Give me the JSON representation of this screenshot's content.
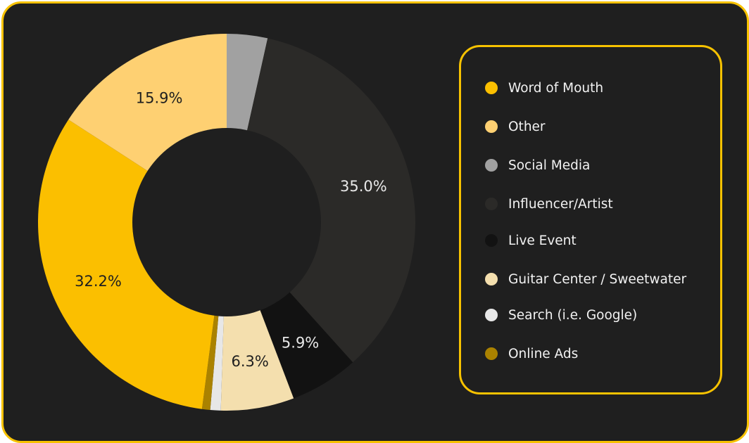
{
  "chart_data": {
    "type": "pie",
    "variant": "donut",
    "title": "",
    "legend_position": "right",
    "series": [
      {
        "name": "Word of Mouth",
        "value": 32.2,
        "label": "32.2%",
        "color": "#fbbf00"
      },
      {
        "name": "Other",
        "value": 15.9,
        "label": "15.9%",
        "color": "#fed072"
      },
      {
        "name": "Social Media",
        "value": 3.5,
        "label": "",
        "color": "#a1a1a1"
      },
      {
        "name": "Influencer/Artist",
        "value": 35.0,
        "label": "35.0%",
        "color": "#2b2a28"
      },
      {
        "name": "Live Event",
        "value": 5.9,
        "label": "5.9%",
        "color": "#121212"
      },
      {
        "name": "Guitar Center / Sweetwater",
        "value": 6.3,
        "label": "6.3%",
        "color": "#f4dfae"
      },
      {
        "name": "Search (i.e. Google)",
        "value": 0.9,
        "label": "",
        "color": "#e7e7e7"
      },
      {
        "name": "Online Ads",
        "value": 0.7,
        "label": "",
        "color": "#aa8200"
      }
    ],
    "slice_order_clockwise_from_top": [
      "Social Media",
      "Influencer/Artist",
      "Live Event",
      "Guitar Center / Sweetwater",
      "Search (i.e. Google)",
      "Online Ads",
      "Word of Mouth",
      "Other"
    ]
  },
  "colors": {
    "card_background": "#1f1f1f",
    "accent_border": "#f7c200",
    "dark_label_text": "#1f1f1f",
    "light_label_text": "#e8e8e8"
  }
}
